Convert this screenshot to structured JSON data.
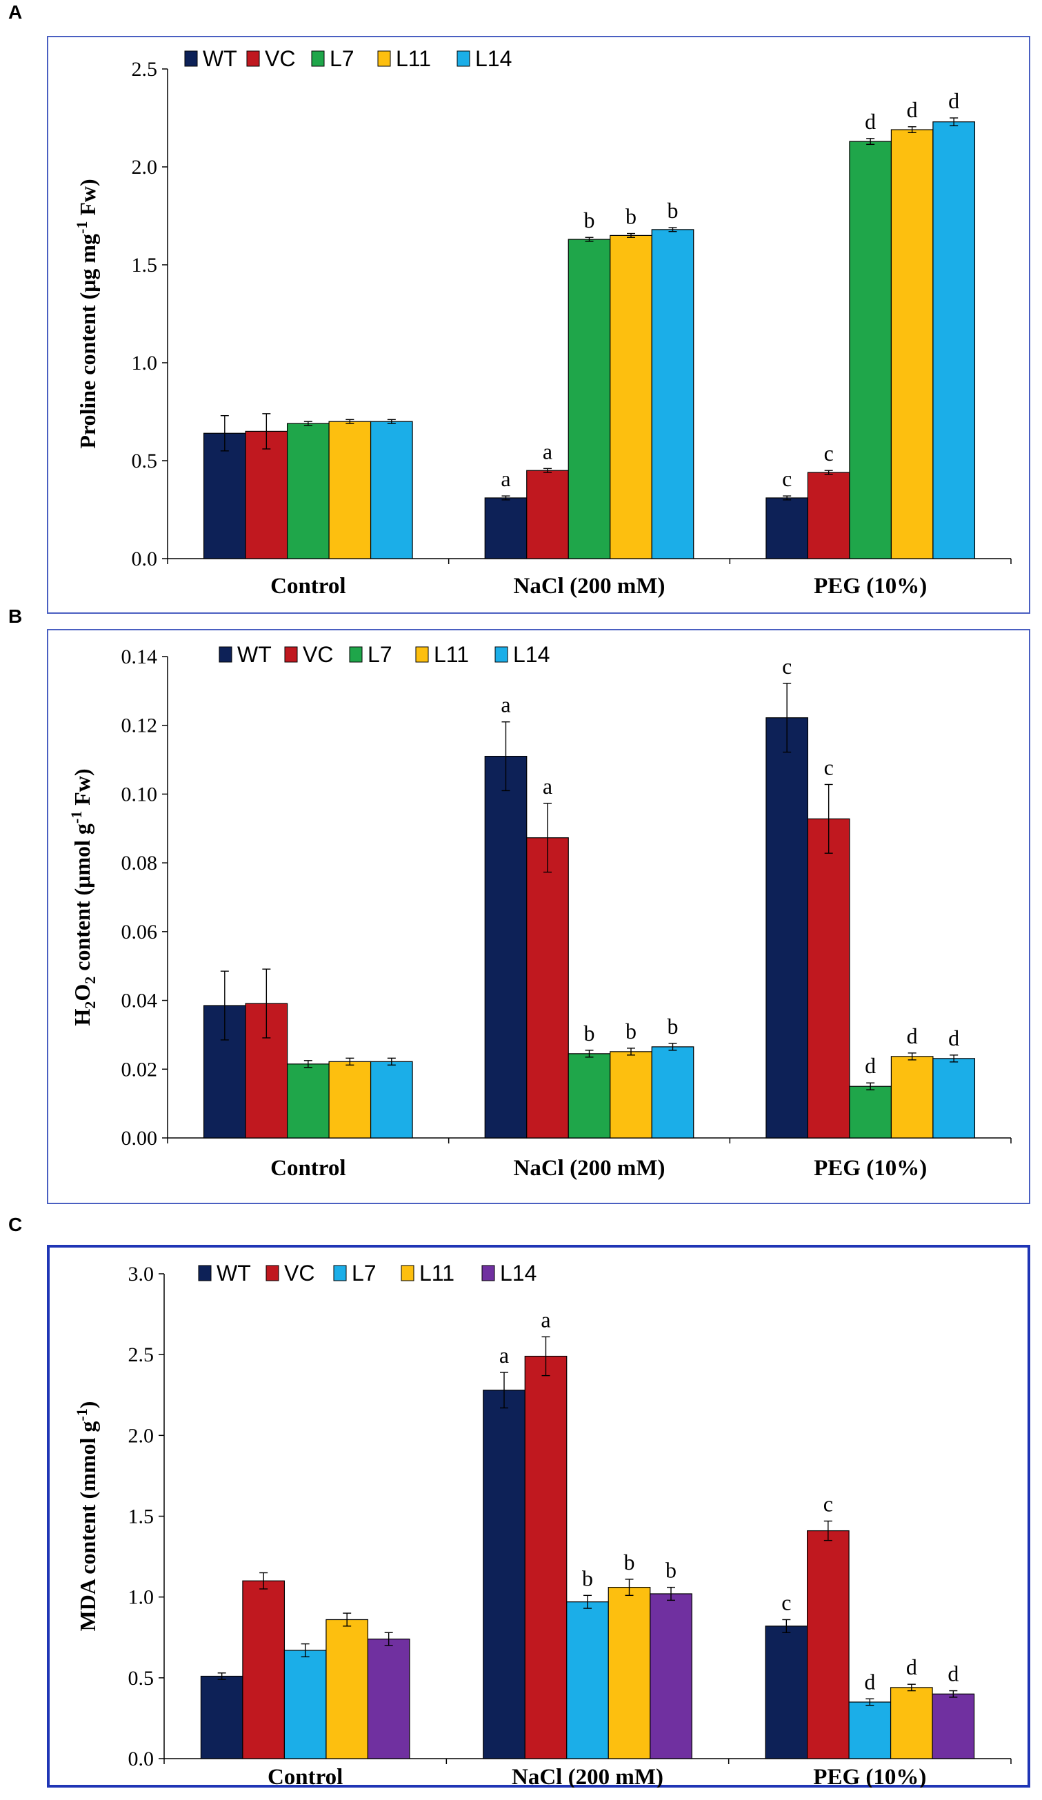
{
  "figure": {
    "panels": [
      {
        "letter": "A",
        "border_color": "#4a5fc1",
        "border_width": 2
      },
      {
        "letter": "B",
        "border_color": "#4a5fc1",
        "border_width": 2
      },
      {
        "letter": "C",
        "border_color": "#1f35b5",
        "border_width": 4
      }
    ]
  },
  "chart_data": [
    {
      "type": "bar",
      "panel": "A",
      "categories": [
        "Control",
        "NaCl (200 mM)",
        "PEG (10%)"
      ],
      "ylabel_parts": [
        "Proline content (μg mg",
        "-1",
        " Fw)"
      ],
      "ylim": [
        0,
        2.5
      ],
      "yticks": [
        "0.0",
        "0.5",
        "1.0",
        "1.5",
        "2.0",
        "2.5"
      ],
      "legend": [
        "WT",
        "VC",
        "L7",
        "L11",
        "L14"
      ],
      "series": [
        {
          "name": "WT",
          "color": "#0d2157",
          "values": [
            0.64,
            0.31,
            0.31
          ],
          "errors": [
            0.09,
            0.01,
            0.01
          ],
          "labels": [
            "",
            "a",
            "c"
          ]
        },
        {
          "name": "VC",
          "color": "#c0181f",
          "values": [
            0.65,
            0.45,
            0.44
          ],
          "errors": [
            0.09,
            0.01,
            0.01
          ],
          "labels": [
            "",
            "a",
            "c"
          ]
        },
        {
          "name": "L7",
          "color": "#1fa64a",
          "values": [
            0.69,
            1.63,
            2.13
          ],
          "errors": [
            0.01,
            0.01,
            0.015
          ],
          "labels": [
            "",
            "b",
            "d"
          ]
        },
        {
          "name": "L11",
          "color": "#fdbf0f",
          "values": [
            0.7,
            1.65,
            2.19
          ],
          "errors": [
            0.01,
            0.01,
            0.015
          ],
          "labels": [
            "",
            "b",
            "d"
          ]
        },
        {
          "name": "L14",
          "color": "#1baee8",
          "values": [
            0.7,
            1.68,
            2.23
          ],
          "errors": [
            0.01,
            0.01,
            0.02
          ],
          "labels": [
            "",
            "b",
            "d"
          ]
        }
      ]
    },
    {
      "type": "bar",
      "panel": "B",
      "categories": [
        "Control",
        "NaCl (200 mM)",
        "PEG (10%)"
      ],
      "ylabel_parts": [
        "H",
        "2",
        "O",
        "2",
        " content (μmol g",
        "-1",
        " Fw)"
      ],
      "ylim": [
        0,
        0.14
      ],
      "yticks": [
        "0.00",
        "0.02",
        "0.04",
        "0.06",
        "0.08",
        "0.10",
        "0.12",
        "0.14"
      ],
      "legend": [
        "WT",
        "VC",
        "L7",
        "L11",
        "L14"
      ],
      "series": [
        {
          "name": "WT",
          "color": "#0d2157",
          "values": [
            0.0385,
            0.111,
            0.1222
          ],
          "errors": [
            0.01,
            0.01,
            0.01
          ],
          "labels": [
            "",
            "a",
            "c"
          ]
        },
        {
          "name": "VC",
          "color": "#c0181f",
          "values": [
            0.0391,
            0.0873,
            0.0928
          ],
          "errors": [
            0.01,
            0.01,
            0.01
          ],
          "labels": [
            "",
            "a",
            "c"
          ]
        },
        {
          "name": "L7",
          "color": "#1fa64a",
          "values": [
            0.0215,
            0.0245,
            0.015
          ],
          "errors": [
            0.001,
            0.001,
            0.001
          ],
          "labels": [
            "",
            "b",
            "d"
          ]
        },
        {
          "name": "L11",
          "color": "#fdbf0f",
          "values": [
            0.0222,
            0.0251,
            0.0237
          ],
          "errors": [
            0.001,
            0.001,
            0.001
          ],
          "labels": [
            "",
            "b",
            "d"
          ]
        },
        {
          "name": "L14",
          "color": "#1baee8",
          "values": [
            0.0222,
            0.0265,
            0.0231
          ],
          "errors": [
            0.001,
            0.001,
            0.001
          ],
          "labels": [
            "",
            "b",
            "d"
          ]
        }
      ]
    },
    {
      "type": "bar",
      "panel": "C",
      "categories": [
        "Control",
        "NaCl (200 mM)",
        "PEG (10%)"
      ],
      "ylabel_parts": [
        "MDA content (mmol g",
        "-1",
        ")"
      ],
      "ylim": [
        0,
        3.0
      ],
      "yticks": [
        "0.0",
        "0.5",
        "1.0",
        "1.5",
        "2.0",
        "2.5",
        "3.0"
      ],
      "legend": [
        "WT",
        "VC",
        "L7",
        "L11",
        "L14"
      ],
      "series": [
        {
          "name": "WT",
          "color": "#0d2157",
          "values": [
            0.51,
            2.28,
            0.82
          ],
          "errors": [
            0.02,
            0.11,
            0.04
          ],
          "labels": [
            "",
            "a",
            "c"
          ]
        },
        {
          "name": "VC",
          "color": "#c0181f",
          "values": [
            1.1,
            2.49,
            1.41
          ],
          "errors": [
            0.05,
            0.12,
            0.06
          ],
          "labels": [
            "",
            "a",
            "c"
          ]
        },
        {
          "name": "L7",
          "color": "#1baee8",
          "values": [
            0.67,
            0.97,
            0.35
          ],
          "errors": [
            0.04,
            0.04,
            0.02
          ],
          "labels": [
            "",
            "b",
            "d"
          ]
        },
        {
          "name": "L11",
          "color": "#fdbf0f",
          "values": [
            0.86,
            1.06,
            0.44
          ],
          "errors": [
            0.04,
            0.05,
            0.02
          ],
          "labels": [
            "",
            "b",
            "d"
          ]
        },
        {
          "name": "L14",
          "color": "#7030a0",
          "values": [
            0.74,
            1.02,
            0.4
          ],
          "errors": [
            0.04,
            0.04,
            0.02
          ],
          "labels": [
            "",
            "b",
            "d"
          ]
        }
      ]
    }
  ]
}
